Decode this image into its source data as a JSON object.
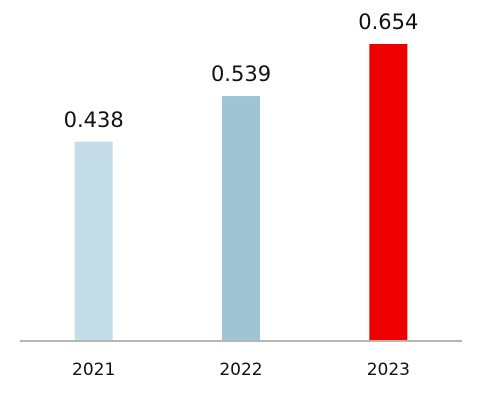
{
  "chart_data": {
    "type": "bar",
    "categories": [
      "2021",
      "2022",
      "2023"
    ],
    "values": [
      0.438,
      0.539,
      0.654
    ],
    "colors": [
      "#c5dde6",
      "#9fc4d3",
      "#ee0000"
    ]
  }
}
